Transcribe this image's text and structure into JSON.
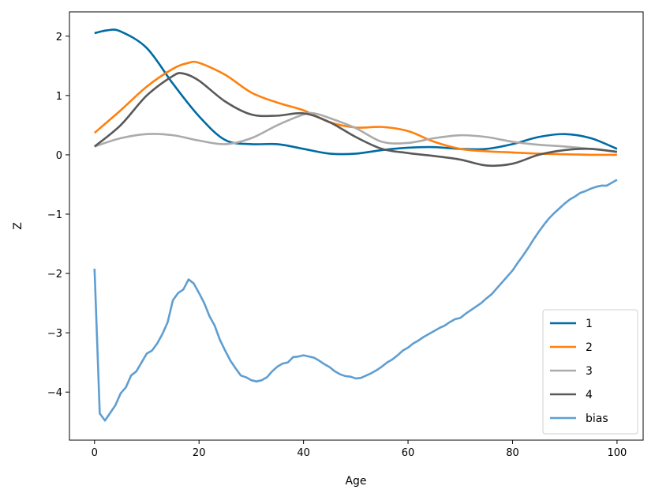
{
  "chart_data": {
    "type": "line",
    "title": "",
    "xlabel": "Age",
    "ylabel": "Z",
    "xlim": [
      -4.8,
      105
    ],
    "ylim": [
      -4.81,
      2.41
    ],
    "xticks": [
      0,
      20,
      40,
      60,
      80,
      100
    ],
    "yticks": [
      2,
      1,
      0,
      -1,
      -2,
      -3,
      -4
    ],
    "ytick_labels": [
      "2",
      "1",
      "0",
      "−1",
      "−2",
      "−3",
      "−4"
    ],
    "grid": false,
    "legend_placement": "lower-right",
    "series": [
      {
        "name": "1",
        "color": "#006BA4",
        "smooth": true,
        "x": [
          0,
          2.5,
          5,
          10,
          15,
          20,
          25,
          30,
          35,
          40,
          45,
          50,
          55,
          60,
          65,
          70,
          75,
          80,
          85,
          90,
          95,
          100
        ],
        "y": [
          2.05,
          2.1,
          2.08,
          1.8,
          1.2,
          0.65,
          0.25,
          0.18,
          0.18,
          0.1,
          0.02,
          0.02,
          0.08,
          0.12,
          0.13,
          0.1,
          0.1,
          0.18,
          0.3,
          0.35,
          0.28,
          0.1
        ]
      },
      {
        "name": "2",
        "color": "#FF800E",
        "smooth": true,
        "x": [
          0,
          5,
          10,
          15,
          18,
          20,
          25,
          30,
          35,
          40,
          45,
          50,
          55,
          60,
          65,
          70,
          75,
          80,
          85,
          90,
          95,
          100
        ],
        "y": [
          0.37,
          0.75,
          1.15,
          1.45,
          1.55,
          1.55,
          1.35,
          1.05,
          0.88,
          0.75,
          0.55,
          0.46,
          0.47,
          0.4,
          0.22,
          0.1,
          0.06,
          0.04,
          0.02,
          0.01,
          0.0,
          0.0
        ]
      },
      {
        "name": "3",
        "color": "#ABABAB",
        "smooth": true,
        "x": [
          0,
          5,
          10,
          15,
          20,
          25,
          30,
          35,
          40,
          42,
          45,
          50,
          55,
          60,
          65,
          70,
          75,
          80,
          85,
          90,
          95,
          100
        ],
        "y": [
          0.14,
          0.28,
          0.35,
          0.33,
          0.24,
          0.18,
          0.28,
          0.5,
          0.68,
          0.7,
          0.62,
          0.45,
          0.22,
          0.2,
          0.28,
          0.33,
          0.3,
          0.22,
          0.17,
          0.14,
          0.1,
          0.05
        ]
      },
      {
        "name": "4",
        "color": "#595959",
        "smooth": true,
        "x": [
          0,
          5,
          10,
          15,
          17,
          20,
          25,
          30,
          35,
          40,
          45,
          50,
          55,
          60,
          65,
          70,
          75,
          80,
          85,
          90,
          95,
          100
        ],
        "y": [
          0.14,
          0.5,
          1.0,
          1.33,
          1.37,
          1.25,
          0.9,
          0.68,
          0.66,
          0.7,
          0.55,
          0.3,
          0.1,
          0.03,
          -0.02,
          -0.08,
          -0.18,
          -0.15,
          0.0,
          0.08,
          0.1,
          0.05
        ]
      },
      {
        "name": "bias",
        "color": "#5F9ED1",
        "smooth": false,
        "x": [
          0,
          1,
          2,
          3,
          4,
          5,
          6,
          7,
          8,
          9,
          10,
          11,
          12,
          13,
          14,
          15,
          16,
          17,
          18,
          19,
          20,
          21,
          22,
          23,
          24,
          25,
          26,
          27,
          28,
          29,
          30,
          31,
          32,
          33,
          34,
          35,
          36,
          37,
          38,
          39,
          40,
          41,
          42,
          43,
          44,
          45,
          46,
          47,
          48,
          49,
          50,
          51,
          52,
          53,
          54,
          55,
          56,
          57,
          58,
          59,
          60,
          61,
          62,
          63,
          64,
          65,
          66,
          67,
          68,
          69,
          70,
          71,
          72,
          73,
          74,
          75,
          76,
          77,
          78,
          79,
          80,
          81,
          82,
          83,
          84,
          85,
          86,
          87,
          88,
          89,
          90,
          91,
          92,
          93,
          94,
          95,
          96,
          97,
          98,
          99,
          100
        ],
        "y": [
          -1.92,
          -4.36,
          -4.48,
          -4.35,
          -4.22,
          -4.02,
          -3.92,
          -3.72,
          -3.65,
          -3.5,
          -3.35,
          -3.3,
          -3.18,
          -3.02,
          -2.82,
          -2.45,
          -2.33,
          -2.27,
          -2.1,
          -2.17,
          -2.33,
          -2.5,
          -2.72,
          -2.88,
          -3.12,
          -3.3,
          -3.47,
          -3.6,
          -3.72,
          -3.75,
          -3.8,
          -3.82,
          -3.8,
          -3.75,
          -3.65,
          -3.57,
          -3.52,
          -3.5,
          -3.41,
          -3.4,
          -3.38,
          -3.4,
          -3.42,
          -3.47,
          -3.53,
          -3.58,
          -3.65,
          -3.7,
          -3.73,
          -3.74,
          -3.77,
          -3.76,
          -3.72,
          -3.68,
          -3.63,
          -3.57,
          -3.5,
          -3.45,
          -3.38,
          -3.3,
          -3.25,
          -3.18,
          -3.13,
          -3.07,
          -3.02,
          -2.97,
          -2.92,
          -2.88,
          -2.82,
          -2.77,
          -2.75,
          -2.68,
          -2.62,
          -2.56,
          -2.5,
          -2.42,
          -2.35,
          -2.25,
          -2.15,
          -2.05,
          -1.95,
          -1.82,
          -1.7,
          -1.57,
          -1.43,
          -1.3,
          -1.18,
          -1.07,
          -0.98,
          -0.9,
          -0.82,
          -0.75,
          -0.7,
          -0.64,
          -0.61,
          -0.57,
          -0.54,
          -0.52,
          -0.52,
          -0.47,
          -0.42
        ]
      }
    ]
  }
}
